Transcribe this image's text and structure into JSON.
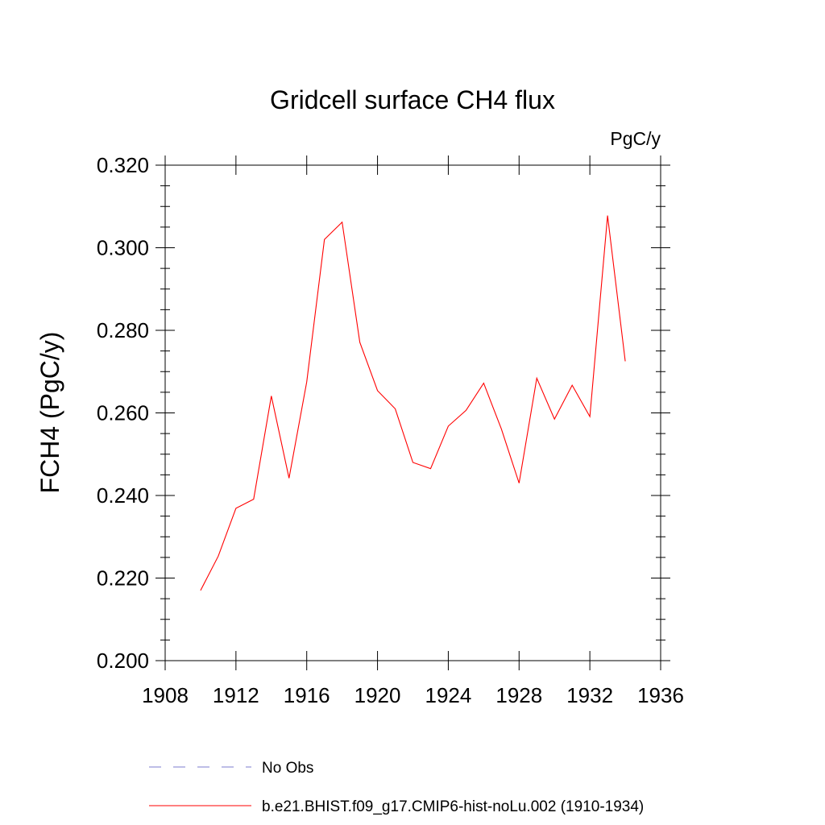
{
  "chart_data": {
    "type": "line",
    "title": "Gridcell surface CH4 flux",
    "units_label": "PgC/y",
    "ylabel": "FCH4  (PgC/y)",
    "xlabel": "",
    "xlim": [
      1908,
      1936
    ],
    "ylim": [
      0.2,
      0.32
    ],
    "x_ticks": [
      1908,
      1912,
      1916,
      1920,
      1924,
      1928,
      1932,
      1936
    ],
    "x_tick_labels": [
      "1908",
      "1912",
      "1916",
      "1920",
      "1924",
      "1928",
      "1932",
      "1936"
    ],
    "y_ticks": [
      0.2,
      0.22,
      0.24,
      0.26,
      0.28,
      0.3,
      0.32
    ],
    "y_tick_labels": [
      "0.200",
      "0.220",
      "0.240",
      "0.260",
      "0.280",
      "0.300",
      "0.320"
    ],
    "grid": false,
    "legend_position": "bottom",
    "series": [
      {
        "name": "b.e21.BHIST.f09_g17.CMIP6-hist-noLu.002 (1910-1934)",
        "color": "#ff0000",
        "style": "solid",
        "x": [
          1910,
          1911,
          1912,
          1913,
          1914,
          1915,
          1916,
          1917,
          1918,
          1919,
          1920,
          1921,
          1922,
          1923,
          1924,
          1925,
          1926,
          1927,
          1928,
          1929,
          1930,
          1931,
          1932,
          1933,
          1934
        ],
        "y": [
          0.217,
          0.2253,
          0.2369,
          0.2391,
          0.2641,
          0.2442,
          0.2675,
          0.302,
          0.3062,
          0.2771,
          0.2654,
          0.261,
          0.248,
          0.2465,
          0.2568,
          0.2606,
          0.2672,
          0.2561,
          0.243,
          0.2684,
          0.2585,
          0.2667,
          0.2591,
          0.3078,
          0.2725
        ]
      }
    ],
    "legend": [
      {
        "label": "No Obs",
        "color": "#7b7bcf",
        "style": "dashed"
      },
      {
        "label": "b.e21.BHIST.f09_g17.CMIP6-hist-noLu.002 (1910-1934)",
        "color": "#ff0000",
        "style": "solid"
      }
    ]
  }
}
